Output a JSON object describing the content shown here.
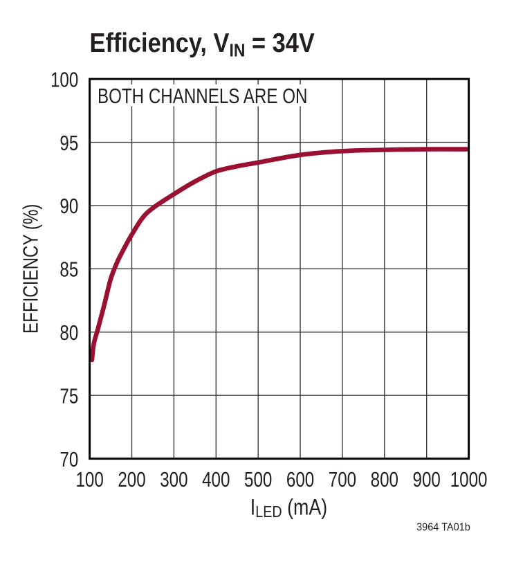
{
  "chart_data": {
    "type": "line",
    "title": {
      "prefix": "Efficiency, V",
      "sub": "IN",
      "suffix": " = 34V",
      "full": "Efficiency, VIN = 34V"
    },
    "annotation": "BOTH CHANNELS ARE ON",
    "xlabel_parts": {
      "prefix": "I",
      "sub": "LED",
      "suffix": " (mA)",
      "full": "ILED (mA)"
    },
    "ylabel": "EFFICIENCY (%)",
    "note": "3964 TA01b",
    "xlim": [
      100,
      1000
    ],
    "ylim": [
      70,
      100
    ],
    "x_ticks": [
      100,
      200,
      300,
      400,
      500,
      600,
      700,
      800,
      900,
      1000
    ],
    "y_ticks": [
      70,
      75,
      80,
      85,
      90,
      95,
      100
    ],
    "grid": true,
    "legend": false,
    "colors": {
      "curve": "#9a1032",
      "grid": "#3a3a3a",
      "frame": "#000000",
      "text": "#231f20",
      "background": "#ffffff"
    },
    "series": [
      {
        "name": "Efficiency, both channels on",
        "x": [
          100,
          110,
          120,
          135,
          150,
          165,
          180,
          200,
          225,
          250,
          300,
          350,
          400,
          450,
          500,
          600,
          700,
          800,
          900,
          1000
        ],
        "y": [
          77.8,
          79.1,
          80.3,
          82.2,
          84.2,
          85.5,
          86.5,
          87.7,
          89.0,
          89.8,
          90.9,
          91.9,
          92.7,
          93.1,
          93.4,
          94.0,
          94.3,
          94.4,
          94.45,
          94.45
        ]
      }
    ]
  }
}
